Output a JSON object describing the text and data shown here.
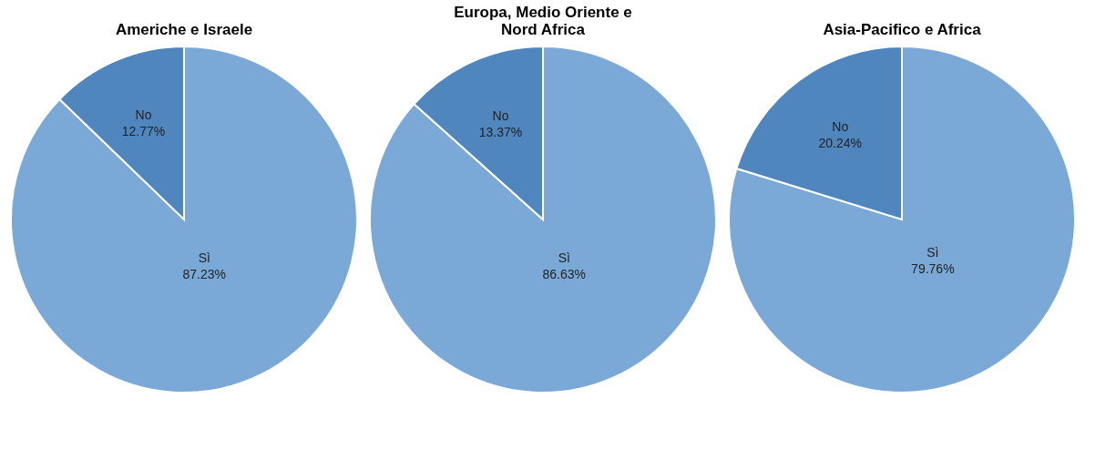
{
  "chart_data": [
    {
      "type": "pie",
      "title": "Americhe e Israele",
      "categories": [
        "Sì",
        "No"
      ],
      "values": [
        87.23,
        12.77
      ],
      "colors": [
        "#7aa9d7",
        "#4f86bd"
      ],
      "value_labels": [
        "87.23%",
        "12.77%"
      ],
      "legend": false
    },
    {
      "type": "pie",
      "title": "Europa, Medio Oriente e Nord Africa",
      "categories": [
        "Sì",
        "No"
      ],
      "values": [
        86.63,
        13.37
      ],
      "colors": [
        "#7aa9d7",
        "#4f86bd"
      ],
      "value_labels": [
        "86.63%",
        "13.37%"
      ],
      "legend": false
    },
    {
      "type": "pie",
      "title": "Asia-Pacifico e Africa",
      "categories": [
        "Sì",
        "No"
      ],
      "values": [
        79.76,
        20.24
      ],
      "colors": [
        "#7aa9d7",
        "#4f86bd"
      ],
      "value_labels": [
        "79.76%",
        "20.24%"
      ],
      "legend": false
    }
  ]
}
